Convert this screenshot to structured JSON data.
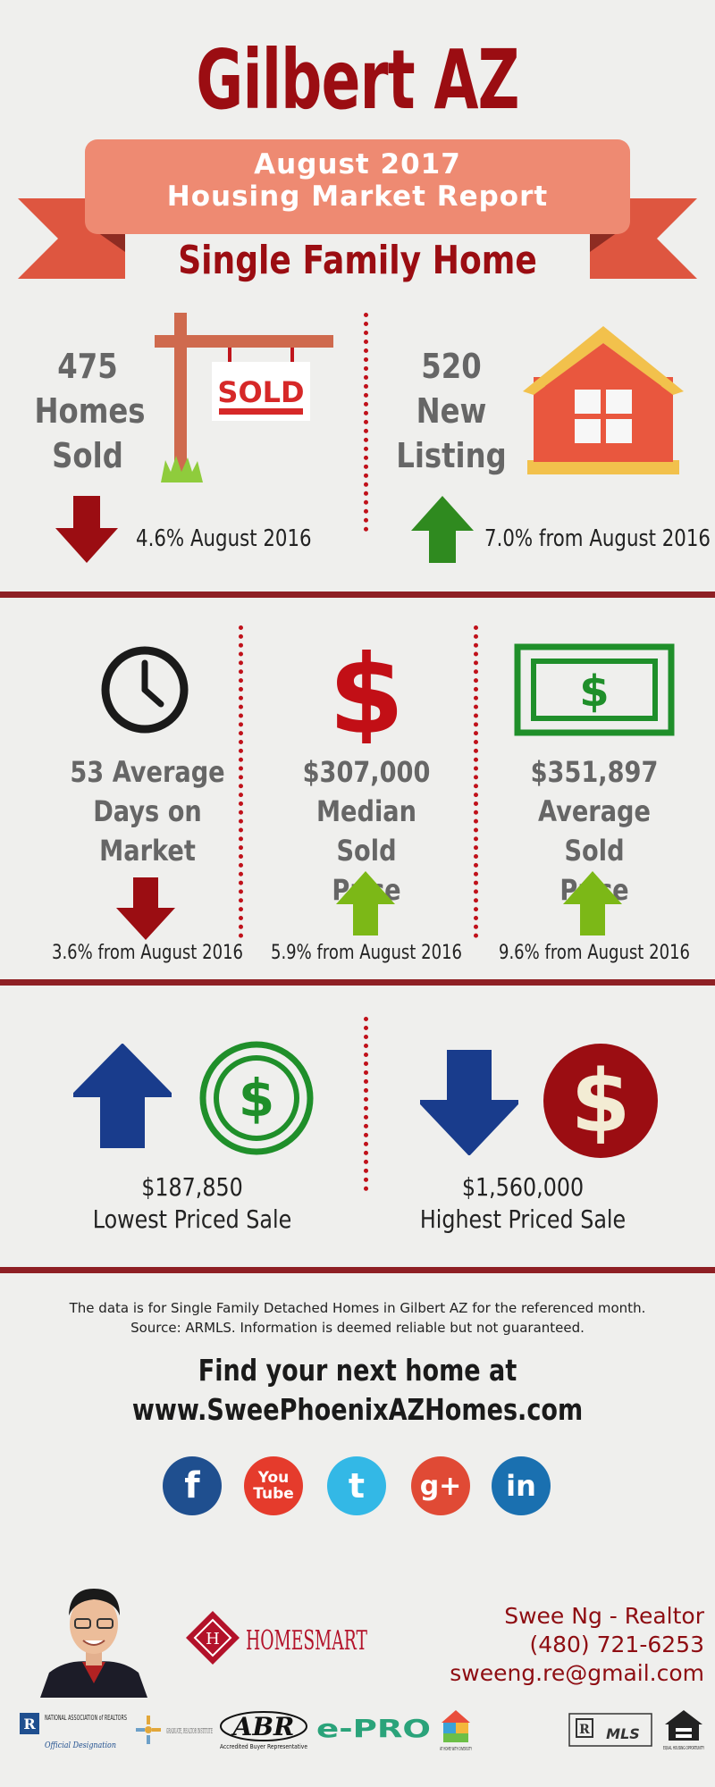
{
  "header": {
    "title": "Gilbert AZ",
    "banner_line1": "August 2017",
    "banner_line2": "Housing Market Report",
    "subtitle": "Single Family Home",
    "sold_sign_text": "SOLD"
  },
  "row1": {
    "homes_sold": {
      "line1": "475",
      "line2": "Homes",
      "line3": "Sold",
      "change": "4.6% August 2016",
      "direction": "down"
    },
    "new_listing": {
      "line1": "520",
      "line2": "New",
      "line3": "Listing",
      "change": "7.0% from August 2016",
      "direction": "up"
    }
  },
  "row2": {
    "days_on_market": {
      "line1": "53 Average",
      "line2": "Days on",
      "line3": "Market",
      "change": "3.6% from August 2016",
      "direction": "down"
    },
    "median_price": {
      "line1": "$307,000",
      "line2": "Median Sold",
      "line3": "Price",
      "change": "5.9% from August 2016",
      "direction": "up"
    },
    "average_price": {
      "line1": "$351,897",
      "line2": "Average Sold",
      "line3": "Price",
      "change": "9.6% from August 2016",
      "direction": "up"
    }
  },
  "row3": {
    "lowest": {
      "value": "$187,850",
      "label": "Lowest Priced Sale"
    },
    "highest": {
      "value": "$1,560,000",
      "label": "Highest Priced Sale"
    }
  },
  "footer": {
    "note_line1": "The data is for Single Family Detached Homes in Gilbert AZ for the referenced month.",
    "note_line2": "Source: ARMLS. Information is deemed reliable but not guaranteed.",
    "cta_line1": "Find your next home at",
    "cta_line2": "www.SweePhoenixAZHomes.com"
  },
  "social": [
    {
      "name": "facebook",
      "glyph": "f",
      "color": "#1f4f8f"
    },
    {
      "name": "youtube",
      "glyph": "You Tube",
      "color": "#e53b2c"
    },
    {
      "name": "twitter",
      "glyph": "t",
      "color": "#33b8e6"
    },
    {
      "name": "google-plus",
      "glyph": "g+",
      "color": "#e04a35"
    },
    {
      "name": "linkedin",
      "glyph": "in",
      "color": "#1a70b0"
    }
  ],
  "contact": {
    "name": "Swee Ng - Realtor",
    "phone": "(480) 721-6253",
    "email": "sweeng.re@gmail.com"
  },
  "logos": {
    "brokerage": "HOMESMART",
    "nar": "NATIONAL ASSOCIATION of REALTORS",
    "nar_sub": "Official Designation",
    "gri": "GRADUATE, REALTOR INSTITUTE",
    "abr": "ABR",
    "abr_sub": "Accredited Buyer Representative",
    "epro": "e-PRO",
    "diversity": "AT HOME WITH DIVERSITY",
    "mls": "MLS",
    "equal_housing": "EQUAL HOUSING OPPORTUNITY"
  },
  "colors": {
    "dark_red": "#9b0d12",
    "banner_salmon": "#ee8a72",
    "down_arrow": "#9b0d12",
    "up_arrow_green": "#2f8a1f",
    "up_arrow_lime": "#7cb817",
    "navy": "#193c8c"
  }
}
